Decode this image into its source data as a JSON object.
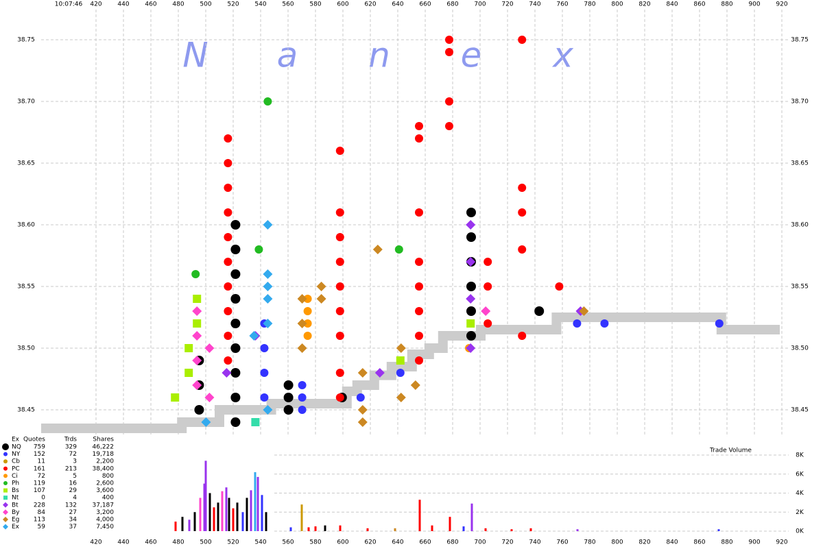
{
  "chart_data": {
    "type": "scatter",
    "time": "10:07:46",
    "watermark": [
      "N",
      "a",
      "n",
      "e",
      "x"
    ],
    "xlim": [
      380,
      925
    ],
    "xticks": [
      420,
      440,
      460,
      480,
      500,
      520,
      540,
      560,
      580,
      600,
      620,
      640,
      660,
      680,
      700,
      720,
      740,
      760,
      780,
      800,
      820,
      840,
      860,
      880,
      900,
      920
    ],
    "ylim": [
      38.43,
      38.78
    ],
    "yticks": [
      38.45,
      {
        "value": 38.5,
        "label": "38.50"
      },
      38.55,
      {
        "value": 38.6,
        "label": "38.60"
      },
      38.65,
      {
        "value": 38.7,
        "label": "38.70"
      },
      38.75
    ],
    "grid": true,
    "nbbo": {
      "color": "#cccccc",
      "x": [
        380,
        482.6,
        510,
        547.8,
        602.9,
        610.4,
        622.9,
        635.4,
        650.4,
        662.9,
        672.9,
        700.5,
        730.6,
        755.7,
        875.9,
        918.5
      ],
      "y": [
        38.435,
        38.44,
        38.45,
        38.455,
        38.465,
        38.47,
        38.478,
        38.485,
        38.495,
        38.5,
        38.51,
        38.515,
        38.515,
        38.525,
        38.515,
        38.515
      ]
    },
    "legend_header": [
      "Ex",
      "Quotes",
      "Trds",
      "Shares"
    ],
    "series": [
      {
        "name": "NQ",
        "color": "#000000",
        "marker": "circle",
        "quotes": 759,
        "trades": 329,
        "shares": "46,222",
        "x": [
          521.7,
          521.7,
          521.7,
          521.7,
          521.7,
          521.7,
          521.7,
          521.7,
          521.7,
          693.5,
          693.5,
          693.5,
          693.5,
          693.5,
          693.5,
          495.2,
          495.2,
          495.2,
          560.3,
          560.3,
          560.3,
          599.4,
          743.1
        ],
        "y": [
          38.6,
          38.58,
          38.56,
          38.54,
          38.52,
          38.5,
          38.48,
          38.46,
          38.44,
          38.61,
          38.59,
          38.57,
          38.55,
          38.53,
          38.51,
          38.49,
          38.47,
          38.45,
          38.47,
          38.46,
          38.45,
          38.46,
          38.53
        ]
      },
      {
        "name": "NY",
        "color": "#3333ff",
        "marker": "circle",
        "quotes": 152,
        "trades": 72,
        "shares": "19,718",
        "x": [
          542.7,
          542.7,
          542.7,
          542.7,
          570.3,
          570.3,
          570.3,
          612.9,
          641.9,
          770.7,
          790.7,
          874.4
        ],
        "y": [
          38.52,
          38.5,
          38.48,
          38.46,
          38.47,
          38.46,
          38.45,
          38.46,
          38.48,
          38.52,
          38.52,
          38.52
        ]
      },
      {
        "name": "Cb",
        "color": "#cc9900",
        "marker": "circle",
        "quotes": 11,
        "trades": 3,
        "shares": "2,200"
      },
      {
        "name": "PC",
        "color": "#ff0000",
        "marker": "circle",
        "quotes": 161,
        "trades": 213,
        "shares": "38,400",
        "x": [
          516.2,
          516.2,
          516.2,
          516.2,
          516.2,
          516.2,
          516.2,
          516.2,
          516.2,
          516.2,
          597.9,
          597.9,
          597.9,
          597.9,
          597.9,
          597.9,
          597.9,
          597.9,
          597.9,
          655.5,
          655.5,
          655.5,
          655.5,
          655.5,
          655.5,
          655.5,
          655.5,
          677.5,
          677.5,
          677.5,
          677.5,
          730.6,
          730.6,
          730.6,
          730.6,
          730.6,
          705.6,
          705.6,
          705.6,
          757.7
        ],
        "y": [
          38.67,
          38.65,
          38.63,
          38.61,
          38.59,
          38.57,
          38.55,
          38.53,
          38.51,
          38.49,
          38.66,
          38.61,
          38.59,
          38.57,
          38.55,
          38.53,
          38.51,
          38.48,
          38.46,
          38.68,
          38.67,
          38.61,
          38.57,
          38.55,
          38.53,
          38.51,
          38.49,
          38.75,
          38.74,
          38.7,
          38.68,
          38.75,
          38.63,
          38.61,
          38.58,
          38.51,
          38.57,
          38.55,
          38.52,
          38.55
        ]
      },
      {
        "name": "Ci",
        "color": "#ff9900",
        "marker": "circle",
        "quotes": 72,
        "trades": 5,
        "shares": "800",
        "x": [
          574.3,
          574.3,
          574.3,
          574.3,
          692
        ],
        "y": [
          38.54,
          38.53,
          38.52,
          38.51,
          38.5
        ]
      },
      {
        "name": "Ph",
        "color": "#22bb22",
        "marker": "circle",
        "quotes": 119,
        "trades": 16,
        "shares": "2,600",
        "x": [
          492.6,
          538.7,
          545.2,
          640.9
        ],
        "y": [
          38.56,
          38.58,
          38.7,
          38.58
        ]
      },
      {
        "name": "Bs",
        "color": "#aaee00",
        "marker": "square",
        "quotes": 107,
        "trades": 29,
        "shares": "3,600",
        "x": [
          493.6,
          493.6,
          487.6,
          487.6,
          477.6,
          641.9,
          693.1
        ],
        "y": [
          38.54,
          38.52,
          38.5,
          38.48,
          38.46,
          38.49,
          38.52
        ]
      },
      {
        "name": "Nt",
        "color": "#33ddaa",
        "marker": "square",
        "quotes": 0,
        "trades": 4,
        "shares": "400",
        "x": [
          536.2
        ],
        "y": [
          38.44
        ]
      },
      {
        "name": "Bt",
        "color": "#9933ee",
        "marker": "diamond",
        "quotes": 228,
        "trades": 132,
        "shares": "37,187",
        "x": [
          536.2,
          515.2,
          626.9,
          693.1,
          693.1,
          693.1,
          693.1,
          773.2
        ],
        "y": [
          38.51,
          38.48,
          38.48,
          38.6,
          38.57,
          38.54,
          38.5,
          38.53
        ]
      },
      {
        "name": "By",
        "color": "#ff44cc",
        "marker": "diamond",
        "quotes": 84,
        "trades": 27,
        "shares": "3,200",
        "x": [
          493.6,
          493.6,
          493.6,
          493.6,
          502.7,
          502.7,
          704.1
        ],
        "y": [
          38.53,
          38.51,
          38.49,
          38.47,
          38.5,
          38.46,
          38.53
        ]
      },
      {
        "name": "Eg",
        "color": "#cc8822",
        "marker": "diamond",
        "quotes": 113,
        "trades": 34,
        "shares": "4,000",
        "x": [
          570.3,
          570.3,
          570.3,
          584.3,
          584.3,
          625.4,
          614.4,
          642.4,
          642.4,
          652.9,
          775.7,
          614.4,
          614.4
        ],
        "y": [
          38.54,
          38.52,
          38.5,
          38.55,
          38.54,
          38.58,
          38.48,
          38.5,
          38.46,
          38.47,
          38.53,
          38.45,
          38.44
        ]
      },
      {
        "name": "Ex",
        "color": "#33aaee",
        "marker": "diamond",
        "quotes": 59,
        "trades": 37,
        "shares": "7,450",
        "x": [
          545.2,
          545.2,
          545.2,
          545.2,
          545.2,
          535.2,
          500.2,
          545.2
        ],
        "y": [
          38.6,
          38.56,
          38.55,
          38.54,
          38.52,
          38.51,
          38.44,
          38.45
        ]
      }
    ],
    "volume": {
      "label": "Trade Volume",
      "ylim": [
        0,
        8000
      ],
      "yticks": [
        {
          "value": 0,
          "label": "0K"
        },
        {
          "value": 2000,
          "label": "2K"
        },
        {
          "value": 4000,
          "label": "4K"
        },
        {
          "value": 6000,
          "label": "6K"
        },
        {
          "value": 8000,
          "label": "8K"
        }
      ],
      "x": [
        478,
        483,
        488,
        492,
        496,
        499,
        500,
        503,
        506,
        509,
        512,
        515,
        517,
        520,
        523,
        527,
        530,
        533,
        536,
        538,
        541,
        544,
        562,
        570,
        575,
        580,
        587,
        598,
        618,
        638,
        656,
        665,
        678,
        688,
        694,
        704,
        723,
        737,
        771,
        874
      ],
      "values": [
        1000,
        1500,
        1200,
        2000,
        3500,
        5000,
        7400,
        4000,
        2500,
        3000,
        4200,
        4600,
        3500,
        2400,
        3000,
        2000,
        3500,
        4300,
        6200,
        5700,
        3800,
        2000,
        400,
        2800,
        400,
        500,
        600,
        600,
        300,
        300,
        3300,
        600,
        1500,
        500,
        2900,
        300,
        200,
        300,
        200,
        200
      ],
      "colors": [
        "#ff0000",
        "#000000",
        "#9933ee",
        "#000000",
        "#ff44cc",
        "#9933ee",
        "#9933ee",
        "#000000",
        "#ff0000",
        "#000000",
        "#ff44cc",
        "#9933ee",
        "#000000",
        "#ff0000",
        "#000000",
        "#3333ff",
        "#000000",
        "#9933ee",
        "#33aaee",
        "#9933ee",
        "#3333ff",
        "#000000",
        "#3333ff",
        "#cc9900",
        "#ff0000",
        "#ff0000",
        "#000000",
        "#ff0000",
        "#ff0000",
        "#cc8822",
        "#ff0000",
        "#ff0000",
        "#ff0000",
        "#3333ff",
        "#9933ee",
        "#ff0000",
        "#ff0000",
        "#ff0000",
        "#9933ee",
        "#3333ff"
      ]
    }
  }
}
